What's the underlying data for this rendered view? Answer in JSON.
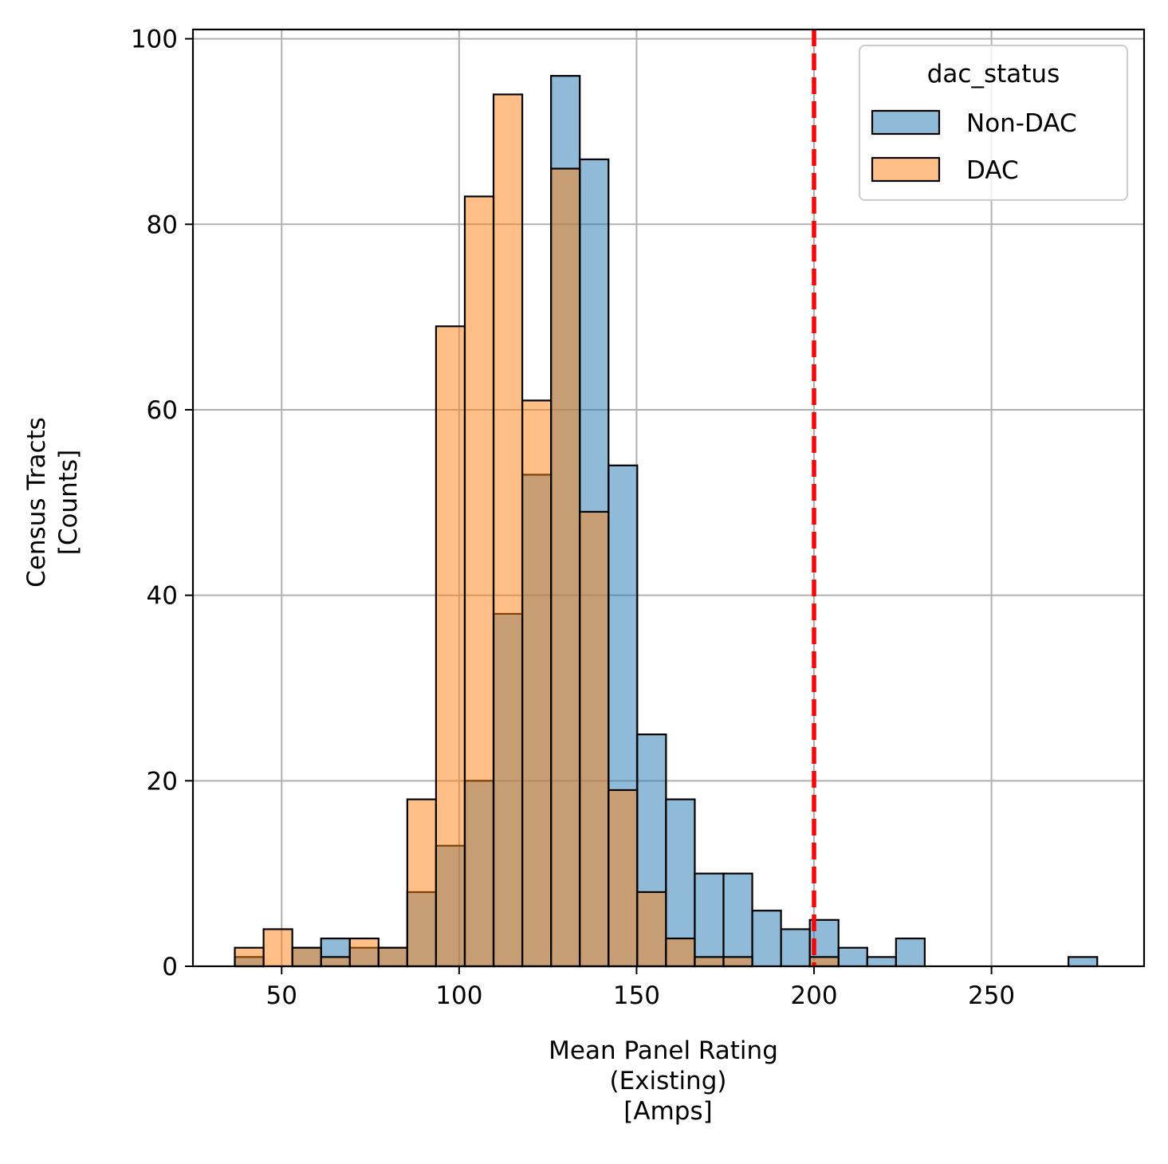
{
  "chart_data": {
    "type": "bar",
    "subtype": "overlaid histogram",
    "xlabel_lines": [
      "Mean Panel Rating",
      "(Existing)",
      "[Amps]"
    ],
    "ylabel_lines": [
      "Census Tracts",
      "[Counts]"
    ],
    "xlim": [
      25,
      293
    ],
    "ylim": [
      0,
      101
    ],
    "xticks": [
      50,
      100,
      150,
      200,
      250
    ],
    "yticks": [
      0,
      20,
      40,
      60,
      80,
      100
    ],
    "grid": true,
    "legend": {
      "title": "dac_status",
      "placement": "top-right"
    },
    "bin_start": 36.8,
    "bin_width": 8.1,
    "series": [
      {
        "name": "Non-DAC",
        "color": "#1f77b4",
        "values": [
          1,
          0,
          2,
          3,
          2,
          2,
          8,
          13,
          20,
          38,
          53,
          96,
          87,
          54,
          25,
          18,
          10,
          10,
          6,
          4,
          5,
          2,
          1,
          3,
          0,
          0,
          0,
          0,
          0,
          1
        ]
      },
      {
        "name": "DAC",
        "color": "#ff7f0e",
        "values": [
          2,
          4,
          2,
          1,
          3,
          2,
          18,
          69,
          83,
          94,
          61,
          86,
          49,
          19,
          8,
          3,
          1,
          1,
          0,
          0,
          1,
          0,
          0,
          0,
          0,
          0,
          0,
          0,
          0,
          0
        ]
      }
    ],
    "reference_line": {
      "x": 200,
      "color": "#ff0000",
      "style": "dashed"
    }
  }
}
